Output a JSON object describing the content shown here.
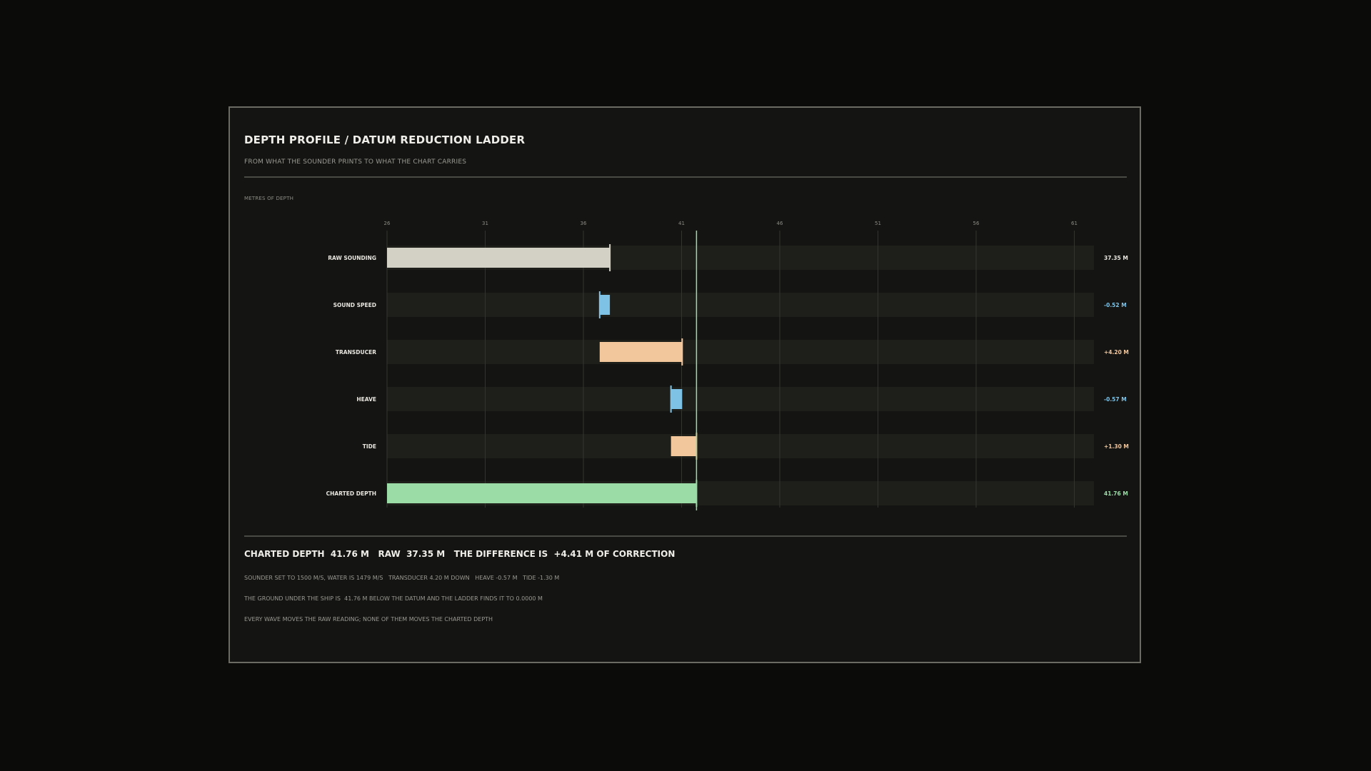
{
  "header": {
    "title": "DEPTH PROFILE / DATUM REDUCTION LADDER",
    "subtitle": "FROM WHAT THE SOUNDER PRINTS TO WHAT THE CHART CARRIES"
  },
  "colors": {
    "raw": "#d3d1c5",
    "negative": "#7ec3e6",
    "positive": "#f3c79c",
    "result": "#9bdca6",
    "track": "#1e1e1b",
    "grid": "#34342f",
    "raw_label": "#e8e6df"
  },
  "chart_data": {
    "type": "waterfall",
    "title": "DEPTH PROFILE / DATUM REDUCTION LADDER",
    "subtitle": "FROM WHAT THE SOUNDER PRINTS TO WHAT THE CHART CARRIES",
    "xlabel": "METRES OF DEPTH",
    "xlim": [
      26,
      62
    ],
    "ticks": [
      26,
      31,
      36,
      41,
      46,
      51,
      56,
      61
    ],
    "tick_labels": [
      "26",
      "31",
      "36",
      "41",
      "46",
      "51",
      "56",
      "61"
    ],
    "reference_line": 41.76,
    "grid": true,
    "rows": [
      {
        "label": "RAW SOUNDING",
        "kind": "total",
        "value": 37.35,
        "value_label": "37.35 M"
      },
      {
        "label": "SOUND SPEED",
        "kind": "delta",
        "value": -0.52,
        "value_label": "-0.52 M"
      },
      {
        "label": "TRANSDUCER",
        "kind": "delta",
        "value": 4.2,
        "value_label": "+4.20 M"
      },
      {
        "label": "HEAVE",
        "kind": "delta",
        "value": -0.57,
        "value_label": "-0.57 M"
      },
      {
        "label": "TIDE",
        "kind": "delta",
        "value": 1.3,
        "value_label": "+1.30 M"
      },
      {
        "label": "CHARTED DEPTH",
        "kind": "result",
        "value": 41.76,
        "value_label": "41.76 M"
      }
    ]
  },
  "summary": {
    "line": "CHARTED DEPTH  41.76 M   RAW  37.35 M   THE DIFFERENCE IS  +4.41 M OF CORRECTION"
  },
  "notes": {
    "line1": "SOUNDER SET TO 1500 M/S, WATER IS 1479 M/S   TRANSDUCER 4.20 M DOWN   HEAVE -0.57 M   TIDE -1.30 M",
    "line2": "THE GROUND UNDER THE SHIP IS  41.76 M BELOW THE DATUM AND THE LADDER FINDS IT TO 0.0000 M",
    "line3": "EVERY WAVE MOVES THE RAW READING; NONE OF THEM MOVES THE CHARTED DEPTH"
  }
}
